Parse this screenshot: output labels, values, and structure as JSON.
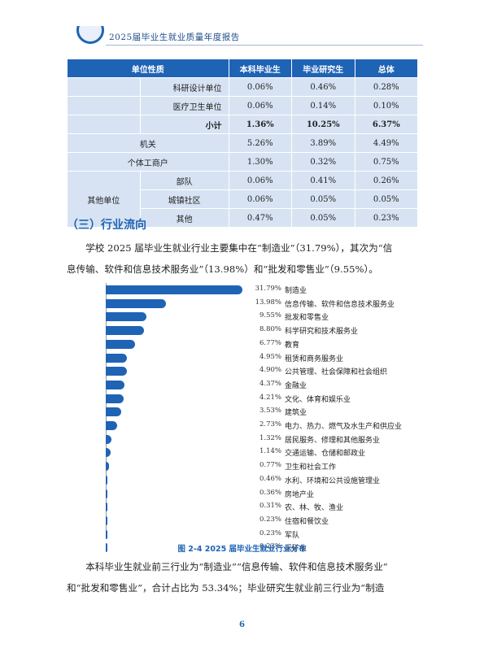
{
  "header": {
    "title": "2025届毕业生就业质量年度报告"
  },
  "table": {
    "headers": [
      "单位性质",
      "本科毕业生",
      "毕业研究生",
      "总体"
    ],
    "rows": {
      "keyan": {
        "label": "科研设计单位",
        "v": [
          "0.06%",
          "0.46%",
          "0.28%"
        ]
      },
      "yiliao": {
        "label": "医疗卫生单位",
        "v": [
          "0.06%",
          "0.14%",
          "0.10%"
        ]
      },
      "xiaoji": {
        "label": "小计",
        "v": [
          "1.36%",
          "10.25%",
          "6.37%"
        ]
      },
      "jiguan": {
        "label": "机关",
        "v": [
          "5.26%",
          "3.89%",
          "4.49%"
        ]
      },
      "geti": {
        "label": "个体工商户",
        "v": [
          "1.30%",
          "0.32%",
          "0.75%"
        ]
      },
      "qita_group": {
        "label": "其他单位"
      },
      "budui": {
        "label": "部队",
        "v": [
          "0.06%",
          "0.41%",
          "0.26%"
        ]
      },
      "chengzhen": {
        "label": "城镇社区",
        "v": [
          "0.06%",
          "0.05%",
          "0.05%"
        ]
      },
      "qita": {
        "label": "其他",
        "v": [
          "0.47%",
          "0.05%",
          "0.23%"
        ]
      }
    }
  },
  "section": {
    "title": "（三）行业流向"
  },
  "para1": {
    "line1": "学校 2025 届毕业生就业行业主要集中在“制造业”（31.79%），其次为“信",
    "line2": "息传输、软件和信息技术服务业”（13.98%）和“批发和零售业”（9.55%）。"
  },
  "chart_data": {
    "type": "bar",
    "orientation": "horizontal",
    "title": "图 2-4  2025 届毕业生就业行业分布",
    "categories": [
      "制造业",
      "信息传输、软件和信息技术服务业",
      "批发和零售业",
      "科学研究和技术服务业",
      "教育",
      "租赁和商务服务业",
      "公共管理、社会保障和社会组织",
      "金融业",
      "文化、体育和娱乐业",
      "建筑业",
      "电力、热力、燃气及水生产和供应业",
      "居民服务、修理和其他服务业",
      "交通运输、仓储和邮政业",
      "卫生和社会工作",
      "水利、环境和公共设施管理业",
      "房地产业",
      "农、林、牧、渔业",
      "住宿和餐饮业",
      "军队",
      "采矿业"
    ],
    "labels": [
      "31.79%",
      "13.98%",
      "9.55%",
      "8.80%",
      "6.77%",
      "4.95%",
      "4.90%",
      "4.37%",
      "4.21%",
      "3.53%",
      "2.73%",
      "1.32%",
      "1.14%",
      "0.77%",
      "0.46%",
      "0.36%",
      "0.31%",
      "0.23%",
      "0.23%",
      "0.23%"
    ],
    "values": [
      31.79,
      13.98,
      9.55,
      8.8,
      6.77,
      4.95,
      4.9,
      4.37,
      4.21,
      3.53,
      2.73,
      1.32,
      1.14,
      0.77,
      0.46,
      0.36,
      0.31,
      0.23,
      0.23,
      0.23
    ],
    "color": "#1f63b5"
  },
  "para2": {
    "line1": "本科毕业生就业前三行业为“制造业”“信息传输、软件和信息技术服务业”",
    "line2": "和“批发和零售业”，合计占比为 53.34%；毕业研究生就业前三行业为“制造"
  },
  "page": {
    "number": "6"
  }
}
